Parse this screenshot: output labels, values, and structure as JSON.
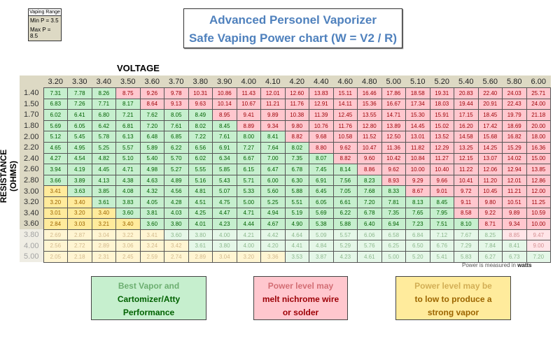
{
  "vaping_range": {
    "title": "Vaping Range",
    "min_label": "Min P = 3.5",
    "max_label": "Max P = 8.5",
    "min": 3.5,
    "max": 8.5
  },
  "title": {
    "line1": "Advanced Personel Vaporizer",
    "line2": "Safe Vaping Power chart (W = V2 / R)"
  },
  "note": {
    "pre": "Power is measured in",
    "unit": "watts"
  },
  "legend": {
    "green": {
      "line1": "Best Vapor and",
      "line2": "Cartomizer/Atty",
      "line3": "Performance"
    },
    "red": {
      "line1": "Power level may",
      "line2": "melt nichrome wire",
      "line3": "or solder"
    },
    "yellow": {
      "line1": "Power level may be",
      "line2": "to low to produce a",
      "line3": "strong vapor"
    }
  },
  "colors": {
    "green_bg": "#c6efce",
    "red_bg": "#ffc7ce",
    "yellow_bg": "#ffeb9c",
    "header_bg": "#ddd9c4",
    "title": "#4f81bd"
  },
  "chart_data": {
    "type": "table",
    "xlabel": "VOLTAGE",
    "ylabel": "RESISTANCE (OHMS)",
    "columns": [
      "3.20",
      "3.30",
      "3.40",
      "3.50",
      "3.60",
      "3.70",
      "3.80",
      "3.90",
      "4.00",
      "4.10",
      "4.20",
      "4.40",
      "4.60",
      "4.80",
      "5.00",
      "5.10",
      "5.20",
      "5.40",
      "5.60",
      "5.80",
      "6.00"
    ],
    "rows": [
      {
        "r": "1.40",
        "values": [
          "7.31",
          "7.78",
          "8.26",
          "8.75",
          "9.26",
          "9.78",
          "10.31",
          "10.86",
          "11.43",
          "12.01",
          "12.60",
          "13.83",
          "15.11",
          "16.46",
          "17.86",
          "18.58",
          "19.31",
          "20.83",
          "22.40",
          "24.03",
          "25.71"
        ]
      },
      {
        "r": "1.50",
        "values": [
          "6.83",
          "7.26",
          "7.71",
          "8.17",
          "8.64",
          "9.13",
          "9.63",
          "10.14",
          "10.67",
          "11.21",
          "11.76",
          "12.91",
          "14.11",
          "15.36",
          "16.67",
          "17.34",
          "18.03",
          "19.44",
          "20.91",
          "22.43",
          "24.00"
        ]
      },
      {
        "r": "1.70",
        "values": [
          "6.02",
          "6.41",
          "6.80",
          "7.21",
          "7.62",
          "8.05",
          "8.49",
          "8.95",
          "9.41",
          "9.89",
          "10.38",
          "11.39",
          "12.45",
          "13.55",
          "14.71",
          "15.30",
          "15.91",
          "17.15",
          "18.45",
          "19.79",
          "21.18"
        ]
      },
      {
        "r": "1.80",
        "values": [
          "5.69",
          "6.05",
          "6.42",
          "6.81",
          "7.20",
          "7.61",
          "8.02",
          "8.45",
          "8.89",
          "9.34",
          "9.80",
          "10.76",
          "11.76",
          "12.80",
          "13.89",
          "14.45",
          "15.02",
          "16.20",
          "17.42",
          "18.69",
          "20.00"
        ]
      },
      {
        "r": "2.00",
        "values": [
          "5.12",
          "5.45",
          "5.78",
          "6.13",
          "6.48",
          "6.85",
          "7.22",
          "7.61",
          "8.00",
          "8.41",
          "8.82",
          "9.68",
          "10.58",
          "11.52",
          "12.50",
          "13.01",
          "13.52",
          "14.58",
          "15.68",
          "16.82",
          "18.00"
        ]
      },
      {
        "r": "2.20",
        "values": [
          "4.65",
          "4.95",
          "5.25",
          "5.57",
          "5.89",
          "6.22",
          "6.56",
          "6.91",
          "7.27",
          "7.64",
          "8.02",
          "8.80",
          "9.62",
          "10.47",
          "11.36",
          "11.82",
          "12.29",
          "13.25",
          "14.25",
          "15.29",
          "16.36"
        ]
      },
      {
        "r": "2.40",
        "values": [
          "4.27",
          "4.54",
          "4.82",
          "5.10",
          "5.40",
          "5.70",
          "6.02",
          "6.34",
          "6.67",
          "7.00",
          "7.35",
          "8.07",
          "8.82",
          "9.60",
          "10.42",
          "10.84",
          "11.27",
          "12.15",
          "13.07",
          "14.02",
          "15.00"
        ]
      },
      {
        "r": "2.60",
        "values": [
          "3.94",
          "4.19",
          "4.45",
          "4.71",
          "4.98",
          "5.27",
          "5.55",
          "5.85",
          "6.15",
          "6.47",
          "6.78",
          "7.45",
          "8.14",
          "8.86",
          "9.62",
          "10.00",
          "10.40",
          "11.22",
          "12.06",
          "12.94",
          "13.85"
        ]
      },
      {
        "r": "2.80",
        "values": [
          "3.66",
          "3.89",
          "4.13",
          "4.38",
          "4.63",
          "4.89",
          "5.16",
          "5.43",
          "5.71",
          "6.00",
          "6.30",
          "6.91",
          "7.56",
          "8.23",
          "8.93",
          "9.29",
          "9.66",
          "10.41",
          "11.20",
          "12.01",
          "12.86"
        ]
      },
      {
        "r": "3.00",
        "values": [
          "3.41",
          "3.63",
          "3.85",
          "4.08",
          "4.32",
          "4.56",
          "4.81",
          "5.07",
          "5.33",
          "5.60",
          "5.88",
          "6.45",
          "7.05",
          "7.68",
          "8.33",
          "8.67",
          "9.01",
          "9.72",
          "10.45",
          "11.21",
          "12.00"
        ]
      },
      {
        "r": "3.20",
        "values": [
          "3.20",
          "3.40",
          "3.61",
          "3.83",
          "4.05",
          "4.28",
          "4.51",
          "4.75",
          "5.00",
          "5.25",
          "5.51",
          "6.05",
          "6.61",
          "7.20",
          "7.81",
          "8.13",
          "8.45",
          "9.11",
          "9.80",
          "10.51",
          "11.25"
        ]
      },
      {
        "r": "3.40",
        "values": [
          "3.01",
          "3.20",
          "3.40",
          "3.60",
          "3.81",
          "4.03",
          "4.25",
          "4.47",
          "4.71",
          "4.94",
          "5.19",
          "5.69",
          "6.22",
          "6.78",
          "7.35",
          "7.65",
          "7.95",
          "8.58",
          "9.22",
          "9.89",
          "10.59"
        ]
      },
      {
        "r": "3.60",
        "values": [
          "2.84",
          "3.03",
          "3.21",
          "3.40",
          "3.60",
          "3.80",
          "4.01",
          "4.23",
          "4.44",
          "4.67",
          "4.90",
          "5.38",
          "5.88",
          "6.40",
          "6.94",
          "7.23",
          "7.51",
          "8.10",
          "8.71",
          "9.34",
          "10.00"
        ]
      },
      {
        "r": "3.80",
        "faded": true,
        "values": [
          "2.69",
          "2.87",
          "3.04",
          "3.22",
          "3.41",
          "3.60",
          "3.80",
          "4.00",
          "4.21",
          "4.42",
          "4.64",
          "5.09",
          "5.57",
          "6.06",
          "6.58",
          "6.84",
          "7.12",
          "7.67",
          "8.25",
          "8.85",
          "9.47"
        ]
      },
      {
        "r": "4.00",
        "faded": true,
        "values": [
          "2.56",
          "2.72",
          "2.89",
          "3.06",
          "3.24",
          "3.42",
          "3.61",
          "3.80",
          "4.00",
          "4.20",
          "4.41",
          "4.84",
          "5.29",
          "5.76",
          "6.25",
          "6.50",
          "6.76",
          "7.29",
          "7.84",
          "8.41",
          "9.00"
        ]
      },
      {
        "r": "5.00",
        "faded": true,
        "values": [
          "2.05",
          "2.18",
          "2.31",
          "2.45",
          "2.59",
          "2.74",
          "2.89",
          "3.04",
          "3.20",
          "3.36",
          "3.53",
          "3.87",
          "4.23",
          "4.61",
          "5.00",
          "5.20",
          "5.41",
          "5.83",
          "6.27",
          "6.73",
          "7.20"
        ]
      }
    ]
  }
}
